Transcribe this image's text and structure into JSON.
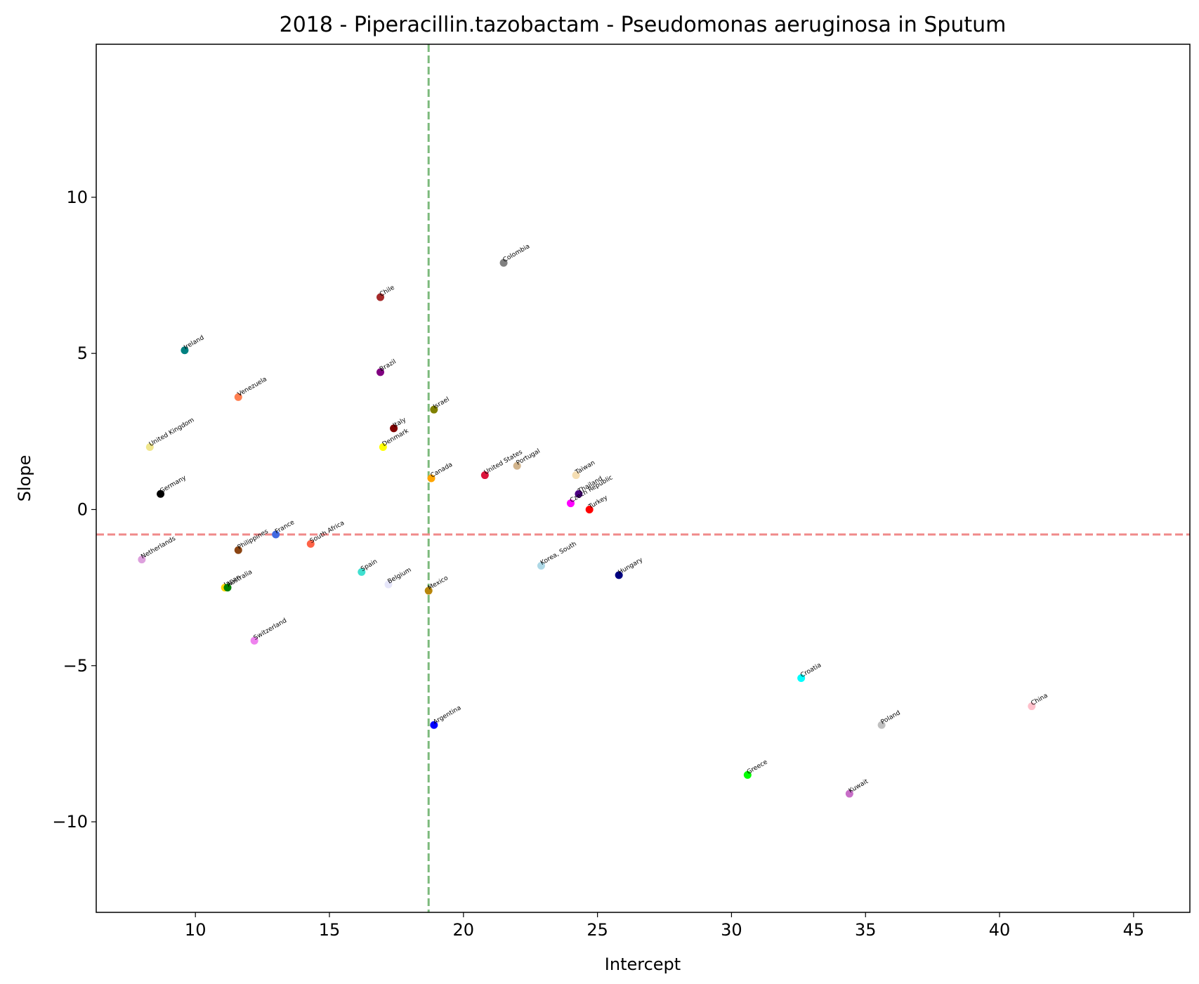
{
  "chart_data": {
    "type": "scatter",
    "title": "2018 - Piperacillin.tazobactam - Pseudomonas aeruginosa in Sputum",
    "xlabel": "Intercept",
    "ylabel": "Slope",
    "xlim": [
      6.3,
      47.1
    ],
    "ylim": [
      -12.9,
      14.9
    ],
    "xticks": [
      10,
      15,
      20,
      25,
      30,
      35,
      40,
      45
    ],
    "yticks": [
      10,
      5,
      0,
      -5,
      -10
    ],
    "ytick_labels": [
      "10",
      "5",
      "0",
      "−5",
      "−10"
    ],
    "grid": false,
    "reference_lines": [
      {
        "orientation": "vertical",
        "value": 18.7,
        "color": "#7cba7c",
        "style": "dashed"
      },
      {
        "orientation": "horizontal",
        "value": -0.8,
        "color": "#f08a8a",
        "style": "dashed"
      }
    ],
    "points": [
      {
        "label": "Colombia",
        "x": 21.5,
        "y": 7.9,
        "color": "#808080"
      },
      {
        "label": "Chile",
        "x": 16.9,
        "y": 6.8,
        "color": "#a52a2a"
      },
      {
        "label": "Ireland",
        "x": 9.6,
        "y": 5.1,
        "color": "#008080"
      },
      {
        "label": "Brazil",
        "x": 16.9,
        "y": 4.4,
        "color": "#800080"
      },
      {
        "label": "Venezuela",
        "x": 11.6,
        "y": 3.6,
        "color": "#ff7f50"
      },
      {
        "label": "Israel",
        "x": 18.9,
        "y": 3.2,
        "color": "#808000"
      },
      {
        "label": "Italy",
        "x": 17.4,
        "y": 2.6,
        "color": "#800000"
      },
      {
        "label": "Denmark",
        "x": 17.0,
        "y": 2.0,
        "color": "#ffff00"
      },
      {
        "label": "United Kingdom",
        "x": 8.3,
        "y": 2.0,
        "color": "#f0e68c"
      },
      {
        "label": "Canada",
        "x": 18.8,
        "y": 1.0,
        "color": "#ffa500"
      },
      {
        "label": "United States",
        "x": 20.8,
        "y": 1.1,
        "color": "#dc143c"
      },
      {
        "label": "Portugal",
        "x": 22.0,
        "y": 1.4,
        "color": "#d2b48c"
      },
      {
        "label": "Taiwan",
        "x": 24.2,
        "y": 1.1,
        "color": "#f5deb3"
      },
      {
        "label": "Thailand",
        "x": 24.3,
        "y": 0.5,
        "color": "#4b0082"
      },
      {
        "label": "Czech Republic",
        "x": 24.0,
        "y": 0.2,
        "color": "#ff00ff"
      },
      {
        "label": "Turkey",
        "x": 24.7,
        "y": 0.0,
        "color": "#ff0000"
      },
      {
        "label": "Germany",
        "x": 8.7,
        "y": 0.5,
        "color": "#000000"
      },
      {
        "label": "France",
        "x": 13.0,
        "y": -0.8,
        "color": "#4169e1"
      },
      {
        "label": "South Africa",
        "x": 14.3,
        "y": -1.1,
        "color": "#ff6347"
      },
      {
        "label": "Philippines",
        "x": 11.6,
        "y": -1.3,
        "color": "#8b4513"
      },
      {
        "label": "Netherlands",
        "x": 8.0,
        "y": -1.6,
        "color": "#dda0dd"
      },
      {
        "label": "Spain",
        "x": 16.2,
        "y": -2.0,
        "color": "#40e0d0"
      },
      {
        "label": "Belgium",
        "x": 17.2,
        "y": -2.4,
        "color": "#e6e6fa"
      },
      {
        "label": "Mexico",
        "x": 18.7,
        "y": -2.6,
        "color": "#b8860b"
      },
      {
        "label": "Korea, South",
        "x": 22.9,
        "y": -1.8,
        "color": "#add8e6"
      },
      {
        "label": "Hungary",
        "x": 25.8,
        "y": -2.1,
        "color": "#000080"
      },
      {
        "label": "Japan",
        "x": 11.1,
        "y": -2.5,
        "color": "#ffd700"
      },
      {
        "label": "Australia",
        "x": 11.2,
        "y": -2.5,
        "color": "#008000"
      },
      {
        "label": "Switzerland",
        "x": 12.2,
        "y": -4.2,
        "color": "#ee82ee"
      },
      {
        "label": "Croatia",
        "x": 32.6,
        "y": -5.4,
        "color": "#00ffff"
      },
      {
        "label": "China",
        "x": 41.2,
        "y": -6.3,
        "color": "#ffc0cb"
      },
      {
        "label": "Argentina",
        "x": 18.9,
        "y": -6.9,
        "color": "#0000ff"
      },
      {
        "label": "Poland",
        "x": 35.6,
        "y": -6.9,
        "color": "#c0c0c0"
      },
      {
        "label": "Greece",
        "x": 30.6,
        "y": -8.5,
        "color": "#00ff00"
      },
      {
        "label": "Kuwait",
        "x": 34.4,
        "y": -9.1,
        "color": "#c86ec8"
      }
    ]
  }
}
